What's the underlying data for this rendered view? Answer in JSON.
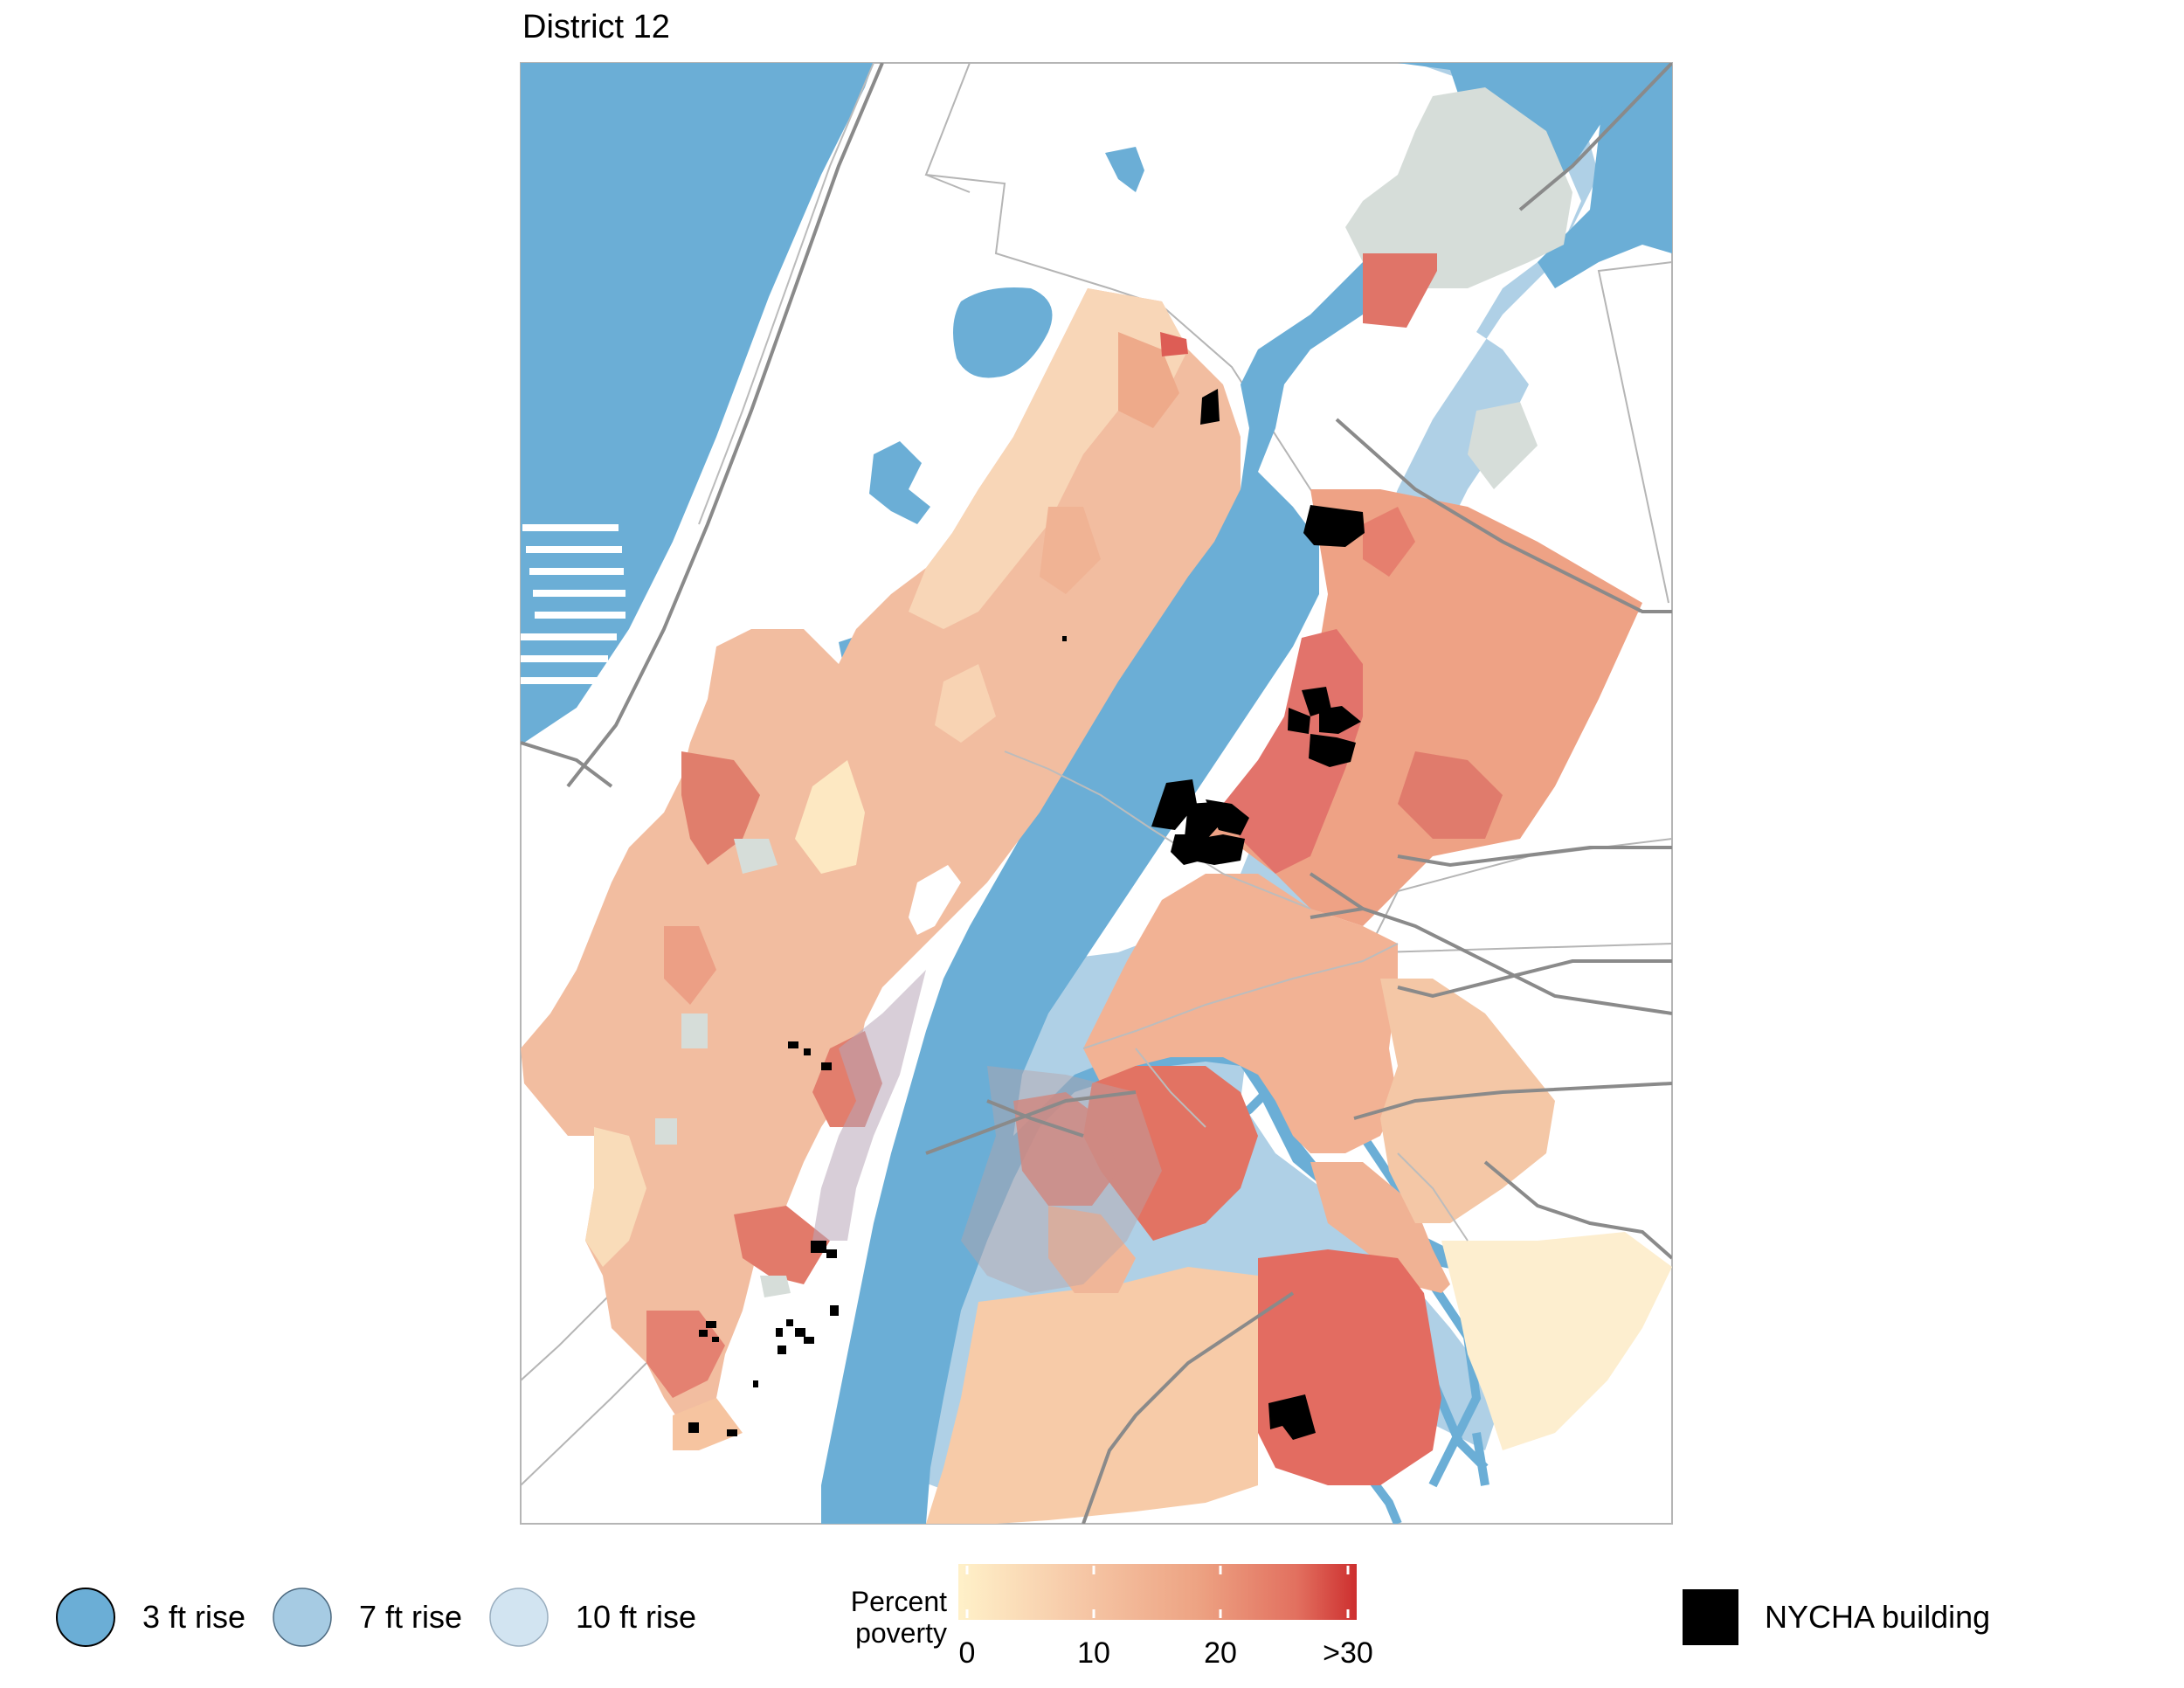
{
  "title": "District 12",
  "legend": {
    "flood": [
      {
        "label": "3 ft rise",
        "color": "#6baed6"
      },
      {
        "label": "7 ft rise",
        "color": "#a6cbe3"
      },
      {
        "label": "10 ft rise",
        "color": "#d2e4f1"
      }
    ],
    "poverty": {
      "title_line1": "Percent",
      "title_line2": "poverty",
      "ticks": [
        "0",
        "10",
        "20",
        ">30"
      ],
      "colors": [
        "#fff1c9",
        "#f6c8a7",
        "#eda383",
        "#e2705f",
        "#cd2f2f"
      ]
    },
    "nycha": {
      "label": "NYCHA building",
      "color": "#000000"
    }
  },
  "colors": {
    "water": "#6baed6",
    "flood_7ft": "#a6cbe3",
    "flood_10ft": "#d2e4f1",
    "no_data": "#d6ddd9",
    "roads": "#8a8a8a",
    "border": "#aaaaaa"
  }
}
